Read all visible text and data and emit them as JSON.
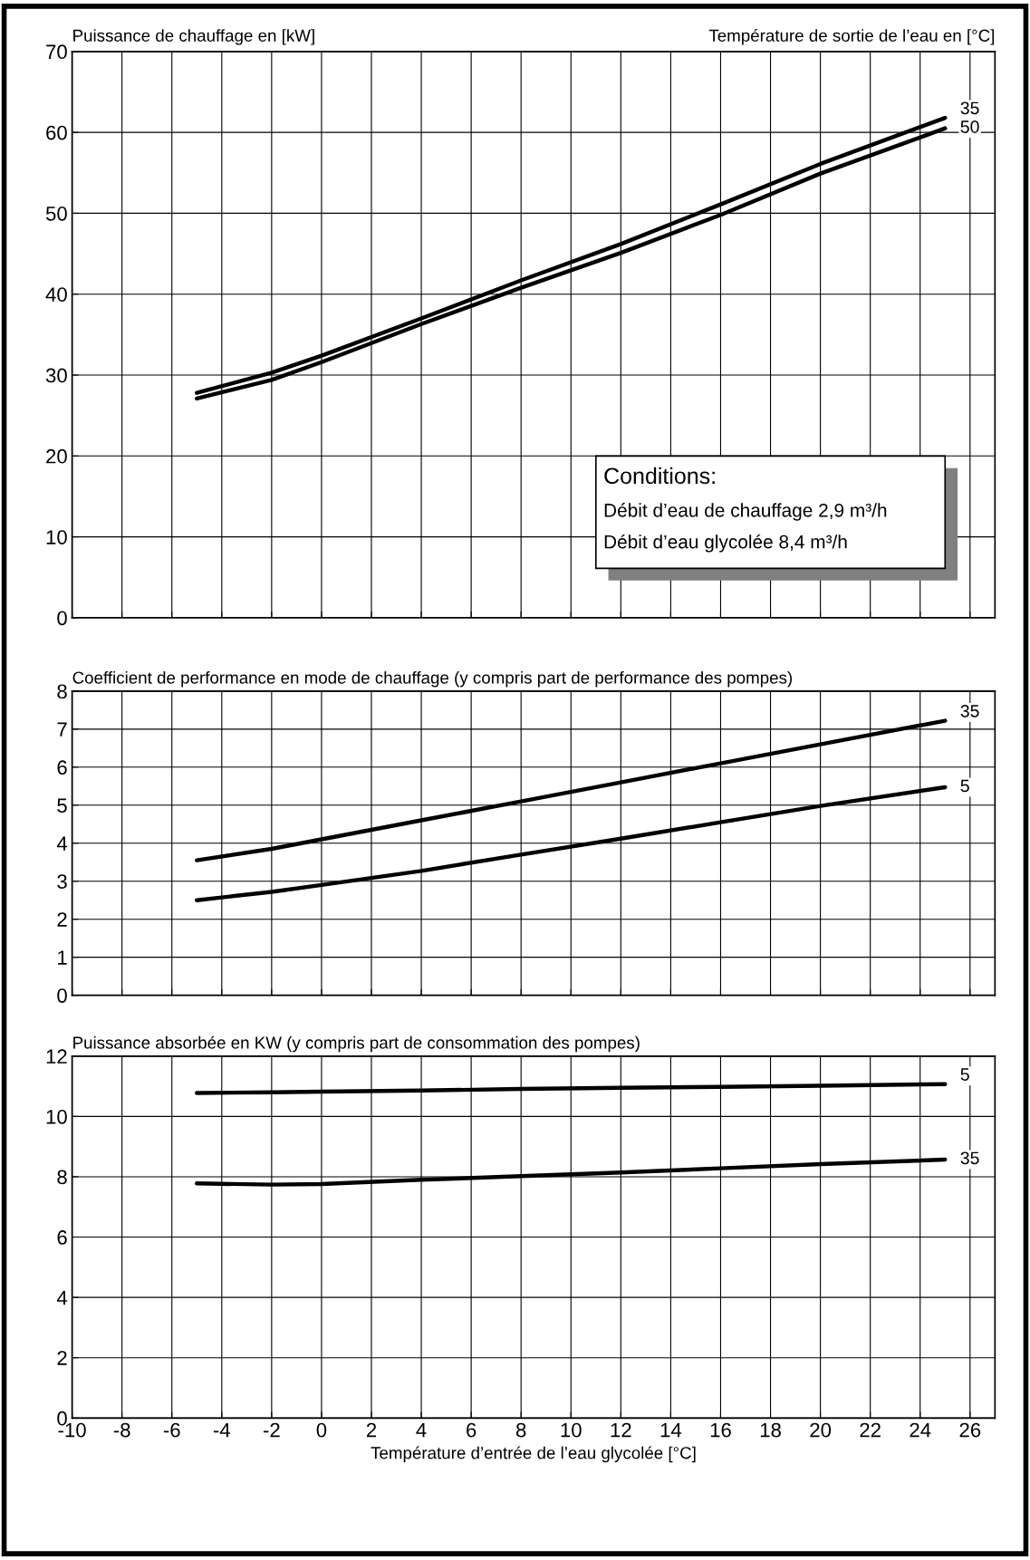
{
  "chart_data": [
    {
      "type": "line",
      "title": "Puissance de chauffage en [kW]",
      "legend_title": "Température de sortie de l’eau en [°C]",
      "x": [
        -5,
        -2,
        0,
        4,
        8,
        12,
        16,
        20,
        25
      ],
      "series": [
        {
          "name": "35",
          "color": "#000000",
          "values": [
            27.8,
            30.3,
            32.4,
            37.0,
            41.7,
            46.2,
            51.1,
            56.1,
            61.8
          ]
        },
        {
          "name": "50",
          "color": "#000000",
          "values": [
            27.1,
            29.4,
            31.6,
            36.3,
            40.8,
            45.1,
            49.8,
            54.9,
            60.5
          ]
        }
      ],
      "xlim": [
        -10,
        27
      ],
      "xticks": [
        -10,
        -8,
        -6,
        -4,
        -2,
        0,
        2,
        4,
        6,
        8,
        10,
        12,
        14,
        16,
        18,
        20,
        22,
        24,
        26
      ],
      "ylim": [
        0,
        70
      ],
      "yticks": [
        0,
        10,
        20,
        30,
        40,
        50,
        60,
        70
      ],
      "grid": true,
      "tick_labels": "y",
      "line_style": "solid",
      "marker": "none",
      "annotations": [
        "Conditions:",
        "Débit d’eau de chauffage 2,9 m³/h",
        "Débit d’eau glycolée 8,4 m³/h"
      ]
    },
    {
      "type": "line",
      "title": "Coefficient de performance en mode de chauffage (y compris part de performance des pompes)",
      "x": [
        -5,
        -2,
        0,
        4,
        8,
        12,
        16,
        20,
        25
      ],
      "series": [
        {
          "name": "35",
          "color": "#000000",
          "values": [
            3.55,
            3.85,
            4.1,
            4.6,
            5.1,
            5.6,
            6.1,
            6.6,
            7.22
          ]
        },
        {
          "name": "5",
          "color": "#000000",
          "values": [
            2.5,
            2.72,
            2.9,
            3.27,
            3.7,
            4.12,
            4.55,
            4.98,
            5.47
          ]
        }
      ],
      "xlim": [
        -10,
        27
      ],
      "xticks": [
        -10,
        -8,
        -6,
        -4,
        -2,
        0,
        2,
        4,
        6,
        8,
        10,
        12,
        14,
        16,
        18,
        20,
        22,
        24,
        26
      ],
      "ylim": [
        0,
        8
      ],
      "yticks": [
        0,
        1,
        2,
        3,
        4,
        5,
        6,
        7,
        8
      ],
      "grid": true,
      "tick_labels": "y",
      "line_style": "solid",
      "marker": "none"
    },
    {
      "type": "line",
      "title": "Puissance absorbée en KW (y compris part de consommation des pompes)",
      "xlabel": "Température d’entrée de l’eau glycolée [°C]",
      "x": [
        -5,
        -2,
        0,
        4,
        8,
        12,
        16,
        20,
        25
      ],
      "series": [
        {
          "name": "5",
          "color": "#000000",
          "values": [
            10.78,
            10.8,
            10.82,
            10.86,
            10.91,
            10.95,
            10.98,
            11.02,
            11.07
          ]
        },
        {
          "name": "35",
          "color": "#000000",
          "values": [
            7.78,
            7.74,
            7.76,
            7.9,
            8.02,
            8.14,
            8.28,
            8.42,
            8.57
          ]
        }
      ],
      "xlim": [
        -10,
        27
      ],
      "xticks": [
        -10,
        -8,
        -6,
        -4,
        -2,
        0,
        2,
        4,
        6,
        8,
        10,
        12,
        14,
        16,
        18,
        20,
        22,
        24,
        26
      ],
      "ylim": [
        0,
        12
      ],
      "yticks": [
        0,
        2,
        4,
        6,
        8,
        10,
        12
      ],
      "grid": true,
      "line_style": "solid",
      "marker": "none"
    }
  ]
}
